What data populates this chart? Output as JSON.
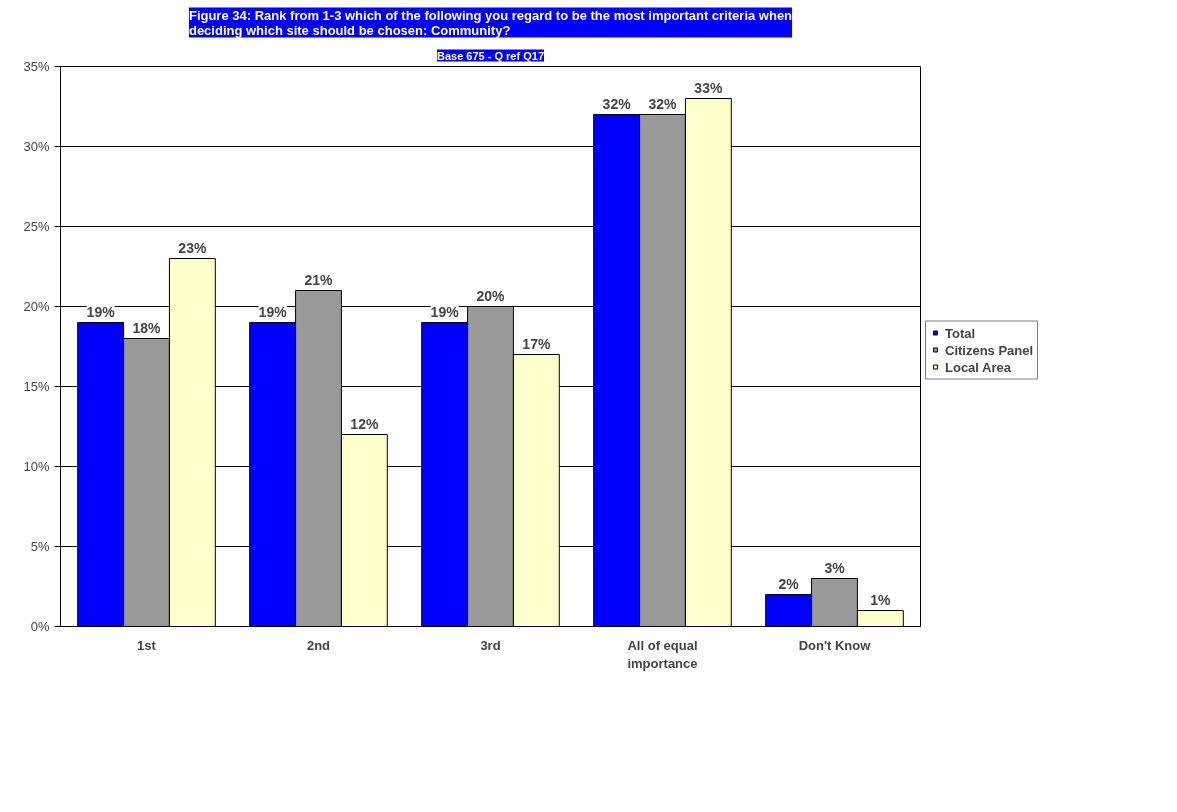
{
  "chart_data": {
    "type": "bar",
    "title": "Figure 34: Rank from 1-3 which of the following you regard to be the most important criteria when\ndeciding which site should be chosen: Community?",
    "subtitle": "Base 675 - Q ref Q17",
    "categories": [
      "1st",
      "2nd",
      "3rd",
      "All of equal importance",
      "Don't Know"
    ],
    "series": [
      {
        "name": "Total",
        "color": "#0000ff",
        "values": [
          19,
          19,
          19,
          32,
          2
        ],
        "value_labels": [
          "19%",
          "19%",
          "19%",
          "32%",
          "2%"
        ]
      },
      {
        "name": "Citizens Panel",
        "color": "#999999",
        "values": [
          18,
          21,
          20,
          32,
          3
        ],
        "value_labels": [
          "18%",
          "21%",
          "20%",
          "32%",
          "3%"
        ]
      },
      {
        "name": "Local Area",
        "color": "#ffffcc",
        "values": [
          23,
          12,
          17,
          33,
          1
        ],
        "value_labels": [
          "23%",
          "12%",
          "17%",
          "33%",
          "1%"
        ]
      }
    ],
    "ylim": [
      0,
      35
    ],
    "yticks": [
      {
        "value": 0,
        "label": "0%"
      },
      {
        "value": 5,
        "label": "5%"
      },
      {
        "value": 10,
        "label": "10%"
      },
      {
        "value": 15,
        "label": "15%"
      },
      {
        "value": 20,
        "label": "20%"
      },
      {
        "value": 25,
        "label": "25%"
      },
      {
        "value": 30,
        "label": "30%"
      },
      {
        "value": 35,
        "label": "35%"
      }
    ],
    "grid": "y",
    "legend": "right"
  }
}
